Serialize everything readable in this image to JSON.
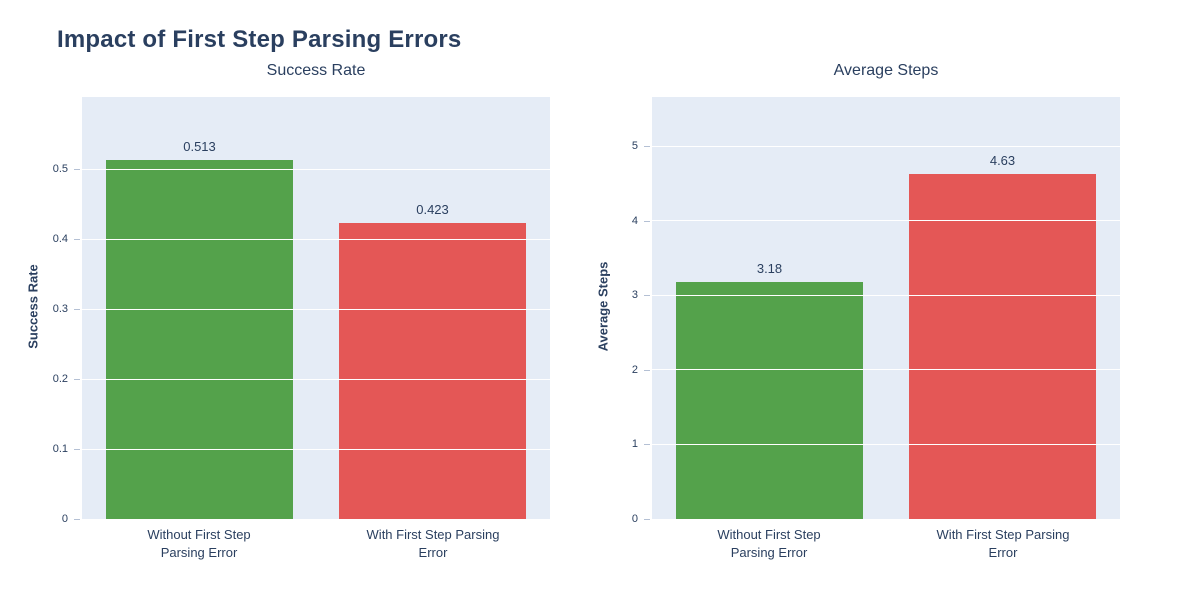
{
  "page": {
    "title": "Impact of First Step Parsing Errors"
  },
  "colors": {
    "plot_bg": "#E5ECF6",
    "grid": "#FFFFFF",
    "text": "#2A3F5F",
    "bar_green": "#54A24B",
    "bar_red": "#E45756"
  },
  "chart_data": [
    {
      "type": "bar",
      "title": "Success Rate",
      "xlabel": "",
      "ylabel": "Success Rate",
      "categories": [
        "Without First Step Parsing Error",
        "With First Step Parsing Error"
      ],
      "values": [
        0.513,
        0.423
      ],
      "value_labels": [
        "0.513",
        "0.423"
      ],
      "bar_colors": [
        "#54A24B",
        "#E45756"
      ],
      "ylim": [
        0,
        0.603
      ],
      "yticks": [
        0,
        0.1,
        0.2,
        0.3,
        0.4,
        0.5
      ],
      "grid": true,
      "legend": "none"
    },
    {
      "type": "bar",
      "title": "Average Steps",
      "xlabel": "",
      "ylabel": "Average Steps",
      "categories": [
        "Without First Step Parsing Error",
        "With First Step Parsing Error"
      ],
      "values": [
        3.18,
        4.63
      ],
      "value_labels": [
        "3.18",
        "4.63"
      ],
      "bar_colors": [
        "#54A24B",
        "#E45756"
      ],
      "ylim": [
        0,
        5.66
      ],
      "yticks": [
        0,
        1,
        2,
        3,
        4,
        5
      ],
      "grid": true,
      "legend": "none"
    }
  ]
}
